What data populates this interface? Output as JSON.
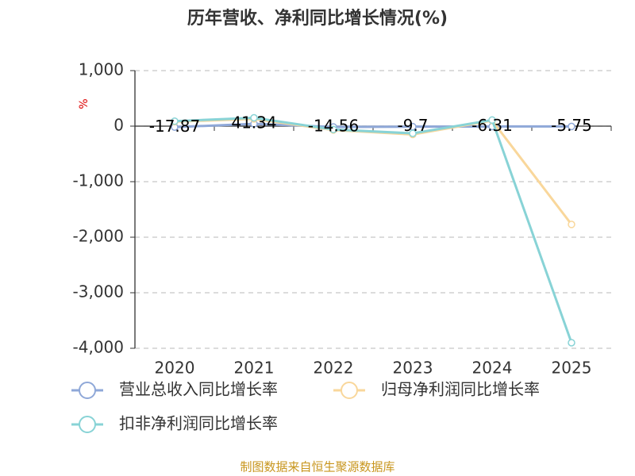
{
  "chart_data": {
    "type": "line",
    "title": "历年营收、净利同比增长情况(%)",
    "y_unit": "%",
    "source": "制图数据来自恒生聚源数据库",
    "categories": [
      "2020",
      "2021",
      "2022",
      "2023",
      "2024",
      "2025"
    ],
    "series": [
      {
        "name": "营业总收入同比增长率",
        "color": "#8fa8d8",
        "values": [
          -17.87,
          41.34,
          -14.56,
          -9.7,
          -6.31,
          -5.75
        ]
      },
      {
        "name": "归母净利润同比增长率",
        "color": "#f9d79b",
        "values": [
          80,
          130,
          -70,
          -150,
          100,
          -1770
        ]
      },
      {
        "name": "扣非净利润同比增长率",
        "color": "#88d3d6",
        "values": [
          90,
          150,
          -60,
          -130,
          110,
          -3900
        ]
      }
    ],
    "ylim": [
      -4000,
      1000
    ],
    "yticks": [
      {
        "value": -4000,
        "label": "-4,000"
      },
      {
        "value": -3000,
        "label": "-3,000"
      },
      {
        "value": -2000,
        "label": "-2,000"
      },
      {
        "value": -1000,
        "label": "-1,000"
      },
      0,
      {
        "value": 1000,
        "label": "1,000"
      }
    ],
    "grid": true
  }
}
